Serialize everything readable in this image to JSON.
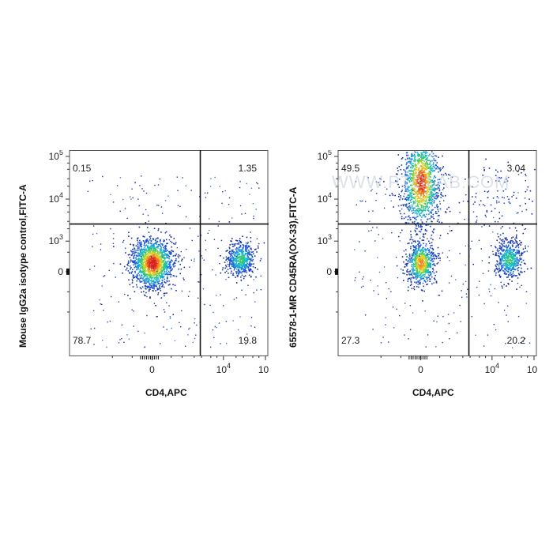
{
  "chart_data": [
    {
      "type": "scatter",
      "subtype": "flow-cytometry-density-quadrant",
      "xlabel": "CD4,APC",
      "ylabel": "Mouse IgG2a isotype control,FITC-A",
      "xscale": "biexponential",
      "yscale": "biexponential",
      "x_ticks": [
        "0",
        "10^4",
        "10^5"
      ],
      "y_ticks": [
        "0",
        "10^3",
        "10^4",
        "10^5"
      ],
      "quadrant_gate": {
        "x": 2800,
        "y": 2600
      },
      "quadrants": {
        "upper_left": "0.15",
        "upper_right": "1.35",
        "lower_left": "78.7",
        "lower_right": "19.8"
      },
      "populations": [
        {
          "name": "",
          "x_center": 0,
          "y_center": 200,
          "percent": 78.7
        },
        {
          "name": "",
          "x_center": 25000,
          "y_center": 300,
          "percent": 19.8
        }
      ],
      "watermark": ""
    },
    {
      "type": "scatter",
      "subtype": "flow-cytometry-density-quadrant",
      "xlabel": "CD4,APC",
      "ylabel": "65578-1-MR CD45RA(OX-33),FITC-A",
      "xscale": "biexponential",
      "yscale": "biexponential",
      "x_ticks": [
        "0",
        "10^4",
        "10^5"
      ],
      "y_ticks": [
        "0",
        "10^3",
        "10^4",
        "10^5"
      ],
      "quadrant_gate": {
        "x": 2800,
        "y": 2600
      },
      "quadrants": {
        "upper_left": "49.5",
        "upper_right": "3.04",
        "lower_left": "27.3",
        "lower_right": "20.2"
      },
      "populations": [
        {
          "name": "",
          "x_center": 0,
          "y_center": 25000,
          "percent": 49.5
        },
        {
          "name": "",
          "x_center": 0,
          "y_center": 200,
          "percent": 27.3
        },
        {
          "name": "",
          "x_center": 25000,
          "y_center": 300,
          "percent": 20.2
        },
        {
          "name": "",
          "x_center": 15000,
          "y_center": 10000,
          "percent": 3.04
        }
      ],
      "watermark": "WWW.PTGLAB.COM"
    }
  ]
}
